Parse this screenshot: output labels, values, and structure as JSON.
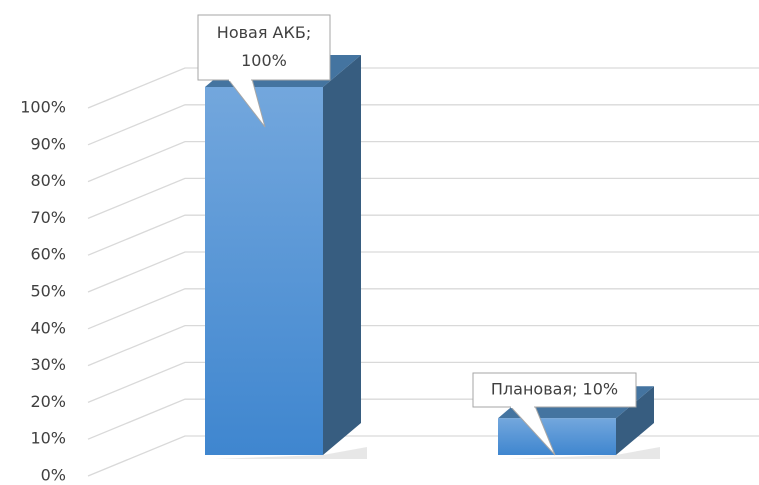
{
  "chart_data": {
    "type": "bar3d",
    "categories": [
      "Новая АКБ",
      "Плановая"
    ],
    "values": [
      100,
      10
    ],
    "value_labels": [
      "Новая АКБ; 100%",
      "Плановая; 10%"
    ],
    "color": "#5b9bd5",
    "ylim": [
      0,
      100
    ],
    "yticks": [
      {
        "value": 0,
        "label": "0%"
      },
      {
        "value": 10,
        "label": "10%"
      },
      {
        "value": 20,
        "label": "20%"
      },
      {
        "value": 30,
        "label": "30%"
      },
      {
        "value": 40,
        "label": "40%"
      },
      {
        "value": 50,
        "label": "50%"
      },
      {
        "value": 60,
        "label": "60%"
      },
      {
        "value": 70,
        "label": "70%"
      },
      {
        "value": 80,
        "label": "80%"
      },
      {
        "value": 90,
        "label": "90%"
      },
      {
        "value": 100,
        "label": "100%"
      }
    ],
    "grid": true
  }
}
